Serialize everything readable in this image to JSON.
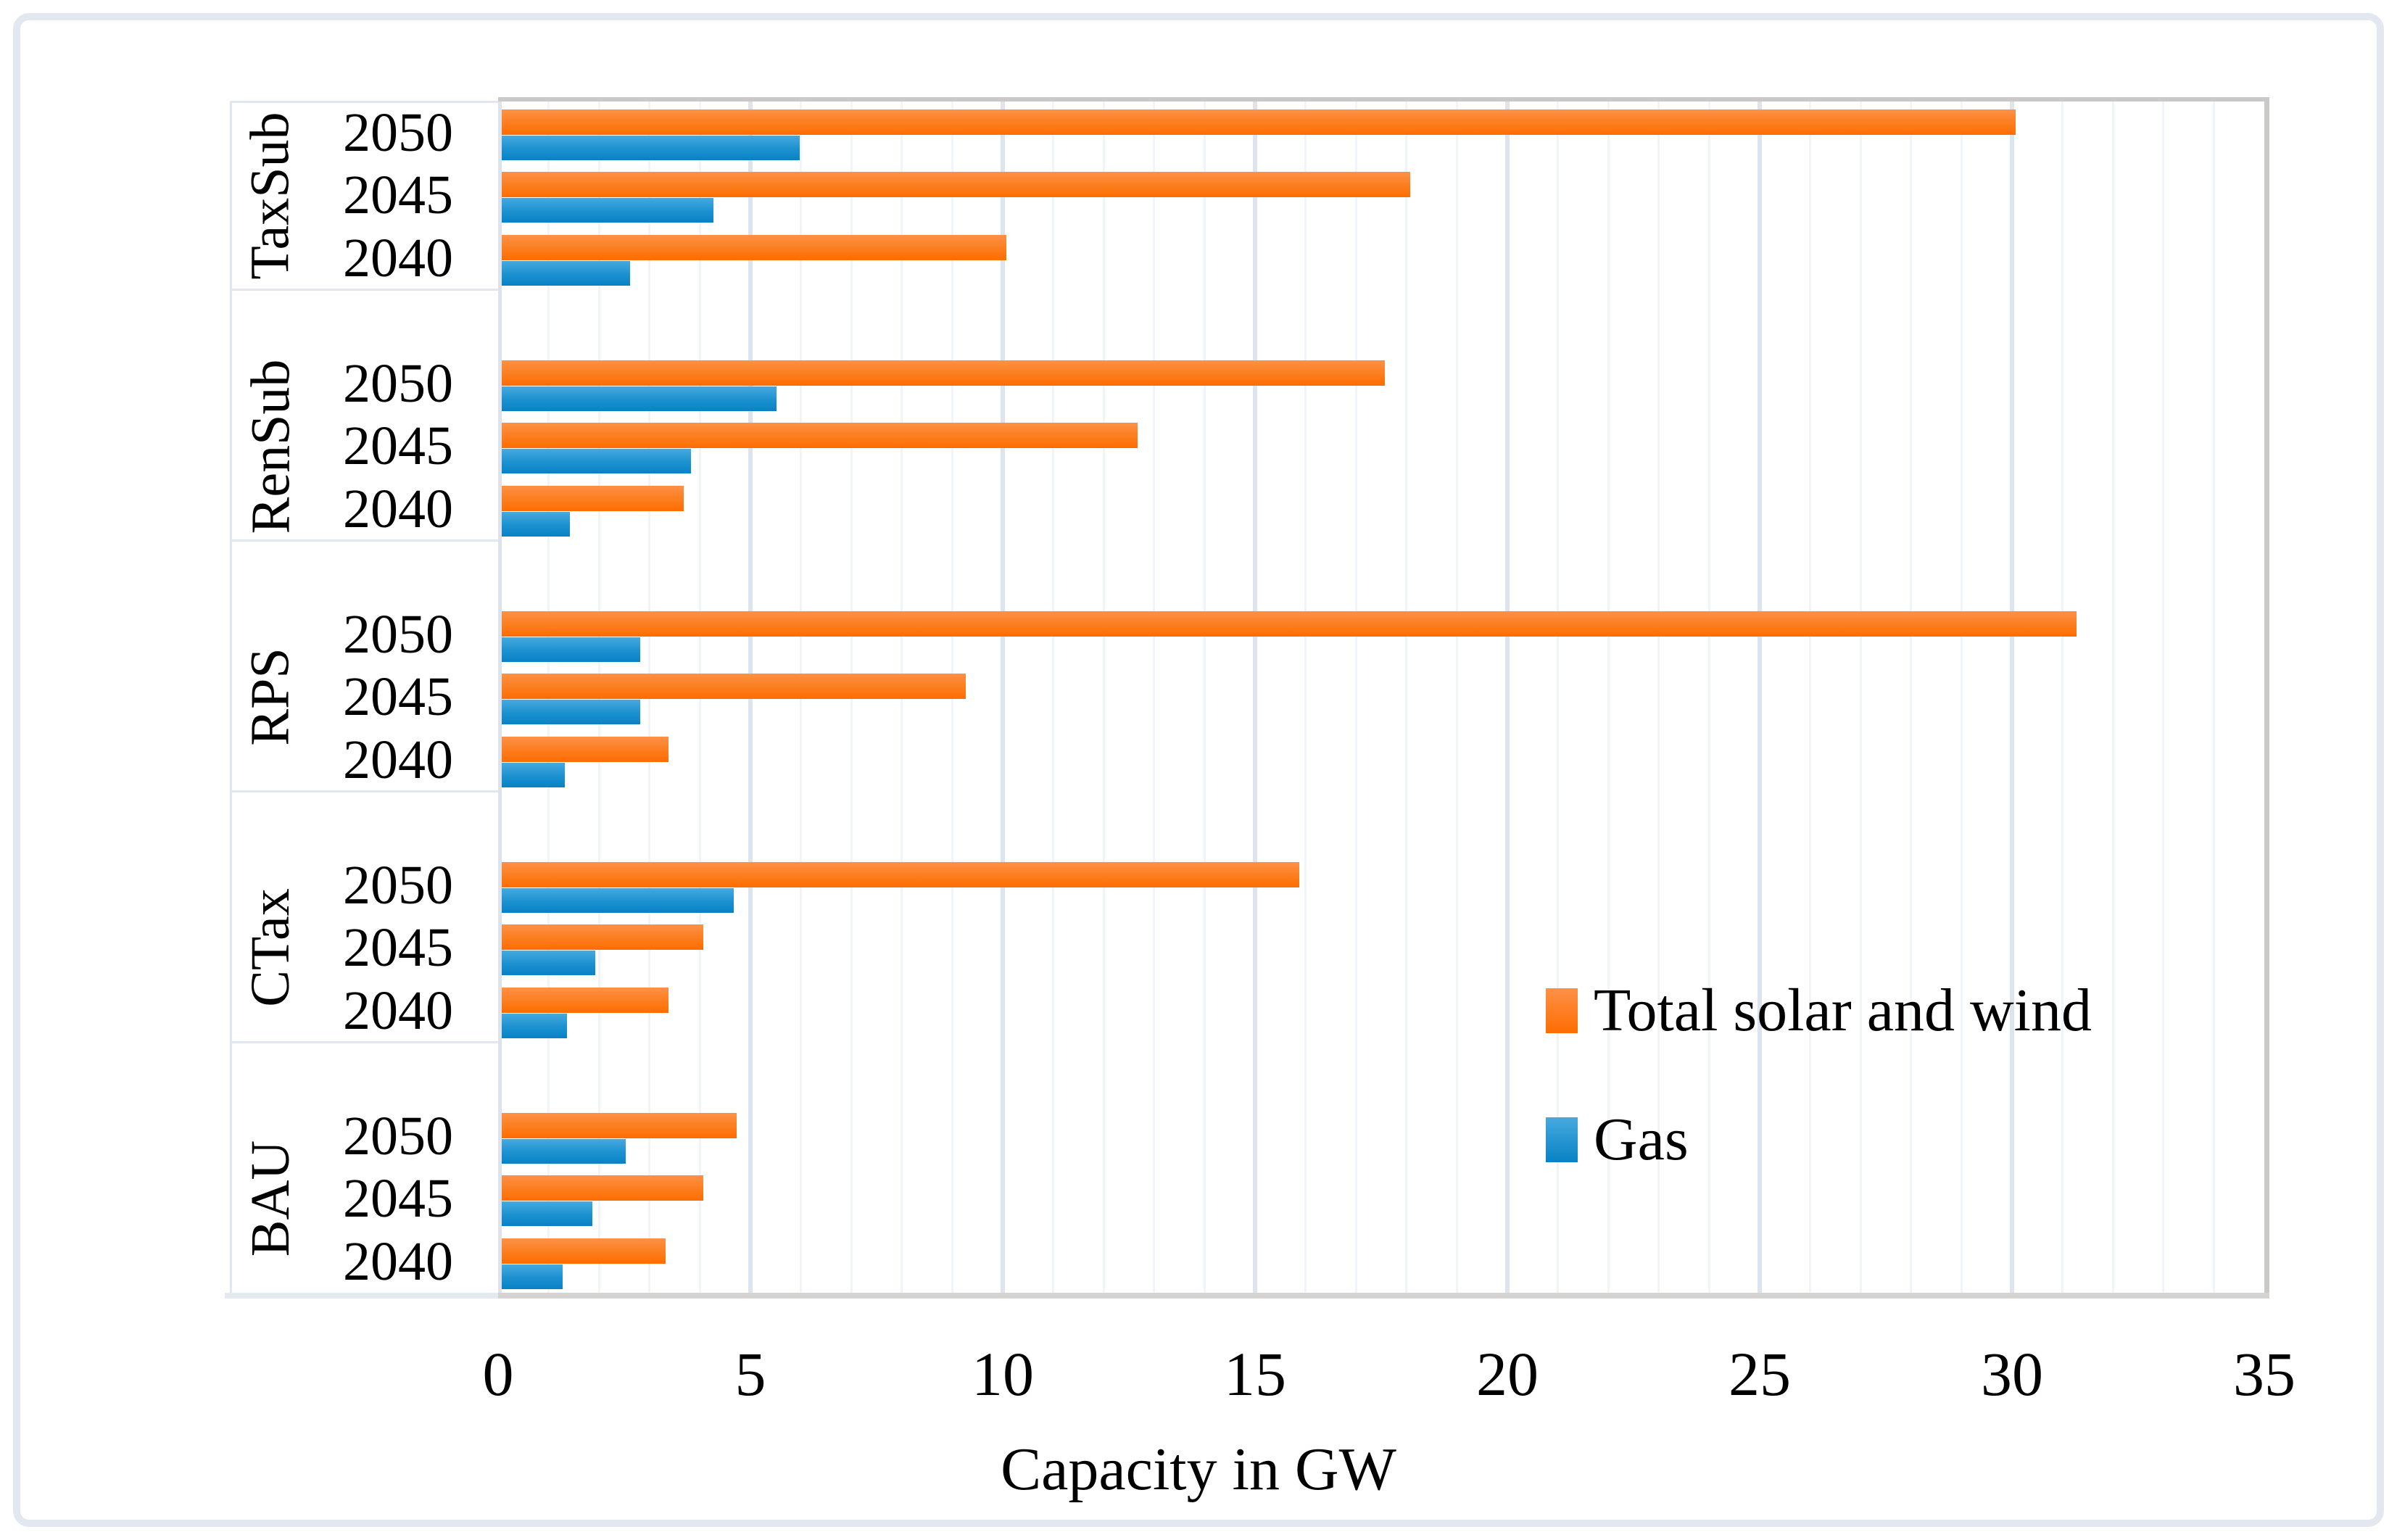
{
  "figure": {
    "background": "#ffffff",
    "frame_color": "#e3e8f0"
  },
  "chart_data": {
    "type": "bar",
    "orientation": "horizontal",
    "title": "",
    "xlabel": "Capacity in GW",
    "ylabel": "",
    "xlim": [
      0,
      35
    ],
    "x_ticks": [
      0,
      5,
      10,
      15,
      20,
      25,
      30,
      35
    ],
    "grid": "minor vertical every 1 GW, major vertical every 5 GW",
    "legend_position": "inside right, middle-lower",
    "series_names": [
      "Total solar and wind",
      "Gas"
    ],
    "groups": [
      {
        "label": "TaxSub",
        "rows": [
          {
            "year": "2050",
            "total_solar_and_wind": 30.0,
            "gas": 5.9
          },
          {
            "year": "2045",
            "total_solar_and_wind": 18.0,
            "gas": 4.2
          },
          {
            "year": "2040",
            "total_solar_and_wind": 10.0,
            "gas": 2.55
          }
        ]
      },
      {
        "label": "RenSub",
        "rows": [
          {
            "year": "2050",
            "total_solar_and_wind": 17.5,
            "gas": 5.45
          },
          {
            "year": "2045",
            "total_solar_and_wind": 12.6,
            "gas": 3.75
          },
          {
            "year": "2040",
            "total_solar_and_wind": 3.6,
            "gas": 1.35
          }
        ]
      },
      {
        "label": "RPS",
        "rows": [
          {
            "year": "2050",
            "total_solar_and_wind": 31.2,
            "gas": 2.75
          },
          {
            "year": "2045",
            "total_solar_and_wind": 9.2,
            "gas": 2.75
          },
          {
            "year": "2040",
            "total_solar_and_wind": 3.3,
            "gas": 1.25
          }
        ]
      },
      {
        "label": "CTax",
        "rows": [
          {
            "year": "2050",
            "total_solar_and_wind": 15.8,
            "gas": 4.6
          },
          {
            "year": "2045",
            "total_solar_and_wind": 4.0,
            "gas": 1.85
          },
          {
            "year": "2040",
            "total_solar_and_wind": 3.3,
            "gas": 1.3
          }
        ]
      },
      {
        "label": "BAU",
        "rows": [
          {
            "year": "2050",
            "total_solar_and_wind": 4.65,
            "gas": 2.45
          },
          {
            "year": "2045",
            "total_solar_and_wind": 4.0,
            "gas": 1.8
          },
          {
            "year": "2040",
            "total_solar_and_wind": 3.25,
            "gas": 1.2
          }
        ]
      }
    ]
  },
  "legend": {
    "solar_label": "Total solar and wind",
    "gas_label": "Gas"
  },
  "colors": {
    "solar_wind_top": "#fd9147",
    "solar_wind_bottom": "#fe6d01",
    "gas_top": "#47a9de",
    "gas_bottom": "#0882c5",
    "grid_minor": "#f1f4f8",
    "grid_major": "#dee4ec",
    "plot_border_gray": "#cbc9c7",
    "axis_strip_bottom": "#d5d3d0",
    "axis_line_left": "#dde3ec",
    "label_separator": "#e2e7ef",
    "text": "#000000"
  }
}
